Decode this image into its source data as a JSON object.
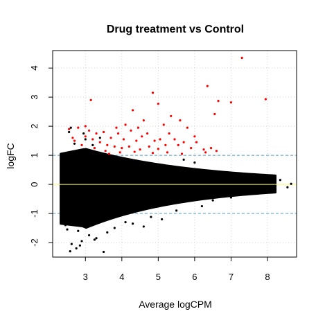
{
  "chart_data": {
    "type": "scatter",
    "title": "Drug treatment vs Control",
    "xlabel": "Average logCPM",
    "ylabel": "logFC",
    "xlim": [
      2.1,
      8.8
    ],
    "ylim": [
      -2.5,
      4.6
    ],
    "x_ticks": [
      3,
      4,
      5,
      6,
      7,
      8
    ],
    "y_ticks": [
      -2,
      -1,
      0,
      1,
      2,
      3,
      4
    ],
    "grid": true,
    "legend": "none",
    "reference_lines": [
      {
        "y": 0,
        "color": "#ffff66",
        "style": "solid"
      },
      {
        "y": 1,
        "color": "#4d9fcf",
        "style": "dashed"
      },
      {
        "y": -1,
        "color": "#4d9fcf",
        "style": "dashed"
      }
    ],
    "series": [
      {
        "color": "#000000",
        "points": [
          [
            2.62,
            -2.05
          ],
          [
            2.75,
            -2.2
          ],
          [
            2.58,
            -2.3
          ],
          [
            2.9,
            -1.95
          ],
          [
            3.5,
            -2.32
          ],
          [
            3.1,
            -1.75
          ],
          [
            3.3,
            -1.85
          ],
          [
            2.5,
            -1.55
          ],
          [
            2.8,
            -1.6
          ],
          [
            4.1,
            -1.3
          ],
          [
            4.6,
            -1.45
          ],
          [
            5.1,
            -1.2
          ],
          [
            4.8,
            -1.12
          ],
          [
            2.45,
            -1.4
          ],
          [
            2.4,
            -1.2
          ],
          [
            3.0,
            1.55
          ],
          [
            2.95,
            1.75
          ],
          [
            2.55,
            1.8
          ],
          [
            2.7,
            1.4
          ],
          [
            3.2,
            1.35
          ],
          [
            5.7,
            0.85
          ],
          [
            6.0,
            0.75
          ],
          [
            6.7,
            0.4
          ],
          [
            7.1,
            0.2
          ],
          [
            7.3,
            -0.3
          ],
          [
            7.6,
            0.25
          ],
          [
            7.85,
            -0.15
          ],
          [
            8.1,
            0.1
          ],
          [
            8.2,
            -0.05
          ],
          [
            8.35,
            0.15
          ],
          [
            8.55,
            -0.1
          ],
          [
            8.65,
            0.02
          ],
          [
            7.0,
            -0.45
          ],
          [
            6.5,
            -0.55
          ],
          [
            6.8,
            0.35
          ],
          [
            7.4,
            -0.1
          ],
          [
            2.6,
            1.95
          ],
          [
            3.4,
            1.6
          ],
          [
            3.6,
            -1.65
          ],
          [
            4.3,
            -1.35
          ],
          [
            5.5,
            -0.9
          ],
          [
            6.2,
            -0.75
          ],
          [
            6.9,
            -0.35
          ],
          [
            2.35,
            -0.6
          ],
          [
            2.35,
            0.6
          ],
          [
            3.8,
            -1.5
          ],
          [
            3.25,
            -1.9
          ],
          [
            2.85,
            -2.1
          ]
        ]
      },
      {
        "color": "#ff0000",
        "points": [
          [
            7.3,
            4.35
          ],
          [
            6.35,
            3.38
          ],
          [
            4.85,
            3.15
          ],
          [
            7.95,
            2.93
          ],
          [
            3.15,
            2.9
          ],
          [
            6.65,
            2.87
          ],
          [
            7.0,
            2.82
          ],
          [
            5.0,
            2.77
          ],
          [
            4.3,
            2.55
          ],
          [
            6.55,
            2.42
          ],
          [
            5.35,
            2.35
          ],
          [
            5.6,
            2.2
          ],
          [
            4.6,
            2.2
          ],
          [
            3.0,
            2.0
          ],
          [
            2.8,
            1.95
          ],
          [
            2.55,
            1.9
          ],
          [
            3.1,
            1.85
          ],
          [
            3.3,
            1.75
          ],
          [
            3.5,
            1.8
          ],
          [
            3.7,
            1.6
          ],
          [
            3.9,
            1.75
          ],
          [
            4.05,
            1.55
          ],
          [
            4.25,
            1.85
          ],
          [
            4.4,
            1.5
          ],
          [
            4.55,
            1.65
          ],
          [
            4.7,
            1.75
          ],
          [
            4.9,
            1.5
          ],
          [
            5.05,
            1.55
          ],
          [
            5.2,
            1.35
          ],
          [
            5.3,
            1.75
          ],
          [
            5.45,
            1.55
          ],
          [
            5.55,
            1.35
          ],
          [
            5.7,
            1.45
          ],
          [
            5.9,
            1.25
          ],
          [
            6.05,
            1.45
          ],
          [
            6.25,
            1.2
          ],
          [
            6.45,
            1.25
          ],
          [
            6.6,
            1.15
          ],
          [
            3.4,
            1.45
          ],
          [
            3.6,
            1.35
          ],
          [
            3.8,
            1.3
          ],
          [
            4.0,
            1.25
          ],
          [
            4.2,
            1.3
          ],
          [
            4.5,
            1.2
          ],
          [
            4.75,
            1.3
          ],
          [
            5.0,
            1.22
          ],
          [
            3.2,
            1.55
          ],
          [
            3.0,
            1.65
          ],
          [
            2.7,
            1.5
          ],
          [
            2.9,
            1.35
          ],
          [
            3.55,
            1.15
          ],
          [
            3.95,
            1.1
          ],
          [
            4.35,
            1.12
          ],
          [
            4.85,
            1.08
          ],
          [
            5.25,
            1.1
          ],
          [
            5.65,
            1.05
          ],
          [
            6.3,
            1.1
          ],
          [
            6.0,
            1.65
          ],
          [
            5.8,
            1.95
          ],
          [
            4.1,
            2.05
          ],
          [
            3.85,
            1.95
          ],
          [
            4.45,
            1.95
          ],
          [
            5.15,
            2.05
          ],
          [
            2.65,
            1.6
          ],
          [
            3.25,
            1.25
          ],
          [
            3.65,
            1.05
          ]
        ]
      }
    ]
  }
}
